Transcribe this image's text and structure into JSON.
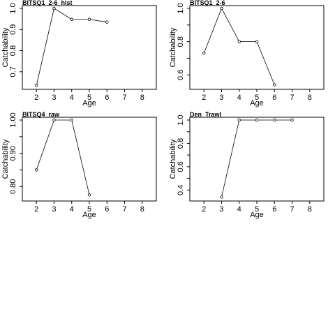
{
  "chart_data": [
    {
      "type": "line",
      "title": "BITSQ1_2-6_hist",
      "xlabel": "Age",
      "ylabel": "Catchability",
      "xlim": [
        1.2,
        8.8
      ],
      "ylim": [
        0.63,
        1.0
      ],
      "x_ticks": [
        2,
        3,
        4,
        5,
        6,
        7,
        8
      ],
      "y_ticks": [
        0.7,
        0.8,
        0.9,
        1.0
      ],
      "y_tick_labels": [
        "0.7",
        "0.8",
        "0.9",
        "1.0"
      ],
      "x": [
        2,
        3,
        4,
        5,
        6
      ],
      "values": [
        0.635,
        1.0,
        0.948,
        0.948,
        0.935
      ]
    },
    {
      "type": "line",
      "title": "BITSQ1_2-6",
      "xlabel": "Age",
      "ylabel": "Catchability",
      "xlim": [
        1.2,
        8.8
      ],
      "ylim": [
        0.53,
        1.0
      ],
      "x_ticks": [
        2,
        3,
        4,
        5,
        6,
        7,
        8
      ],
      "y_ticks": [
        0.6,
        0.8,
        1.0
      ],
      "y_minor_ticks": [
        0.7,
        0.9
      ],
      "y_tick_labels": [
        "0.6",
        "0.8",
        "1.0"
      ],
      "x": [
        2,
        3,
        4,
        5,
        6
      ],
      "values": [
        0.73,
        1.0,
        0.8,
        0.8,
        0.54
      ]
    },
    {
      "type": "line",
      "title": "BITSQ4_raw",
      "xlabel": "Age",
      "ylabel": "Catchability",
      "xlim": [
        1.2,
        8.8
      ],
      "ylim": [
        0.765,
        1.0
      ],
      "x_ticks": [
        2,
        3,
        4,
        5,
        6,
        7,
        8
      ],
      "y_ticks": [
        0.8,
        0.9,
        1.0
      ],
      "y_minor_ticks": [
        0.85,
        0.95
      ],
      "y_tick_labels": [
        "0.80",
        "0.90",
        "1.00"
      ],
      "x": [
        2,
        3,
        4,
        5
      ],
      "values": [
        0.85,
        1.0,
        1.0,
        0.775
      ]
    },
    {
      "type": "line",
      "title": "Den_Trawl",
      "xlabel": "Age",
      "ylabel": "Catchability",
      "xlim": [
        1.2,
        8.8
      ],
      "ylim": [
        0.33,
        1.0
      ],
      "x_ticks": [
        2,
        3,
        4,
        5,
        6,
        7,
        8
      ],
      "y_ticks": [
        0.4,
        0.6,
        0.8,
        1.0
      ],
      "y_minor_ticks": [
        0.5,
        0.7,
        0.9
      ],
      "y_tick_labels": [
        "0.4",
        "0.6",
        "0.8",
        "1.0"
      ],
      "x": [
        3,
        4,
        5,
        6,
        7
      ],
      "values": [
        0.34,
        1.0,
        1.0,
        1.0,
        1.0
      ]
    }
  ]
}
